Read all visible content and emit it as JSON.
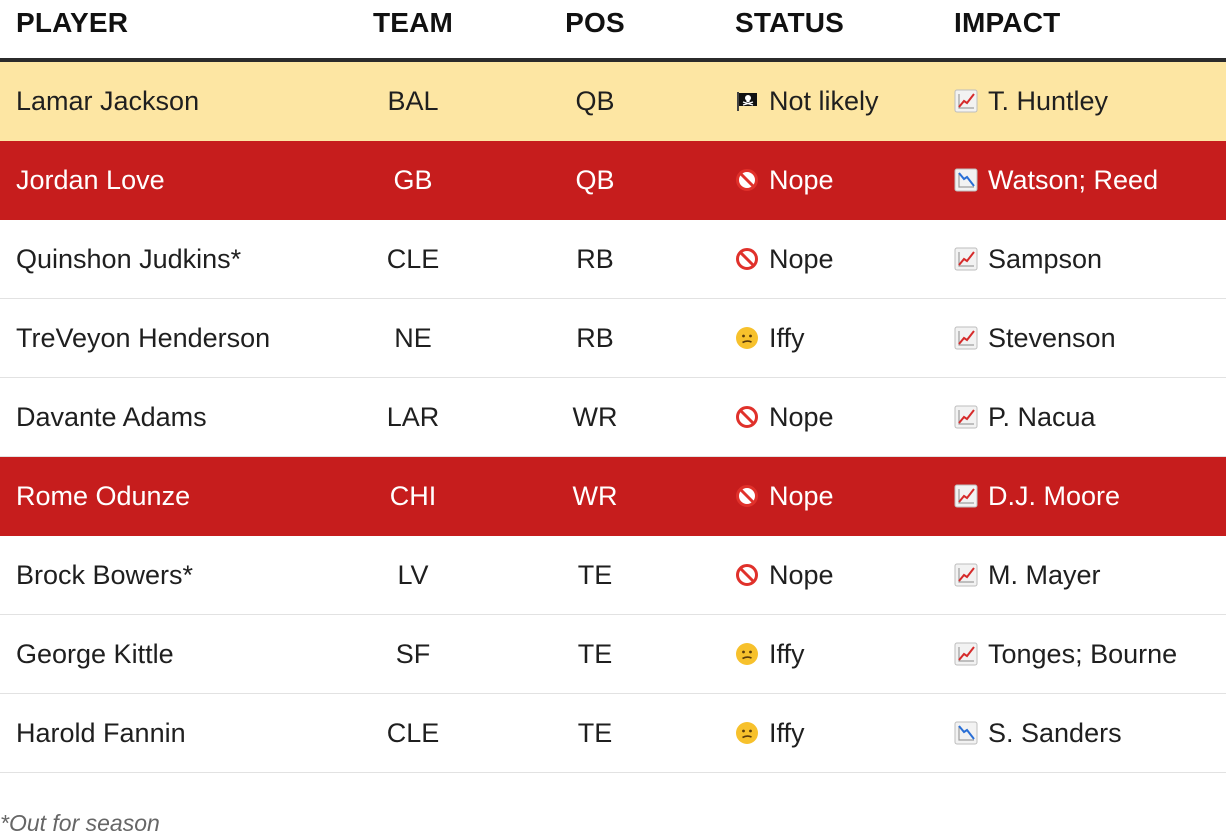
{
  "columns": {
    "player": "PLAYER",
    "team": "TEAM",
    "pos": "POS",
    "status": "STATUS",
    "impact": "IMPACT"
  },
  "rows": [
    {
      "player": "Lamar Jackson",
      "team": "BAL",
      "pos": "QB",
      "status": "Not likely",
      "status_icon": "pirate-flag-icon",
      "impact": "T. Huntley",
      "impact_icon": "chart-increasing-icon",
      "highlight": "yellow"
    },
    {
      "player": "Jordan Love",
      "team": "GB",
      "pos": "QB",
      "status": "Nope",
      "status_icon": "prohibited-icon",
      "impact": "Watson; Reed",
      "impact_icon": "chart-decreasing-icon",
      "highlight": "red"
    },
    {
      "player": "Quinshon Judkins*",
      "team": "CLE",
      "pos": "RB",
      "status": "Nope",
      "status_icon": "prohibited-icon",
      "impact": "Sampson",
      "impact_icon": "chart-increasing-icon",
      "highlight": "none"
    },
    {
      "player": "TreVeyon Henderson",
      "team": "NE",
      "pos": "RB",
      "status": "Iffy",
      "status_icon": "confused-face-icon",
      "impact": "Stevenson",
      "impact_icon": "chart-increasing-icon",
      "highlight": "none"
    },
    {
      "player": "Davante Adams",
      "team": "LAR",
      "pos": "WR",
      "status": "Nope",
      "status_icon": "prohibited-icon",
      "impact": "P. Nacua",
      "impact_icon": "chart-increasing-icon",
      "highlight": "none"
    },
    {
      "player": "Rome Odunze",
      "team": "CHI",
      "pos": "WR",
      "status": "Nope",
      "status_icon": "prohibited-icon",
      "impact": "D.J. Moore",
      "impact_icon": "chart-increasing-icon",
      "highlight": "red"
    },
    {
      "player": "Brock Bowers*",
      "team": "LV",
      "pos": "TE",
      "status": "Nope",
      "status_icon": "prohibited-icon",
      "impact": "M. Mayer",
      "impact_icon": "chart-increasing-icon",
      "highlight": "none"
    },
    {
      "player": "George Kittle",
      "team": "SF",
      "pos": "TE",
      "status": "Iffy",
      "status_icon": "confused-face-icon",
      "impact": "Tonges; Bourne",
      "impact_icon": "chart-increasing-icon",
      "highlight": "none"
    },
    {
      "player": "Harold Fannin",
      "team": "CLE",
      "pos": "TE",
      "status": "Iffy",
      "status_icon": "confused-face-icon",
      "impact": "S. Sanders",
      "impact_icon": "chart-decreasing-icon",
      "highlight": "none"
    }
  ],
  "colors": {
    "highlight_yellow": "#fde6a3",
    "highlight_red": "#c61d1d",
    "header_rule": "#2b2b2b"
  },
  "footnote": "*Out for season"
}
